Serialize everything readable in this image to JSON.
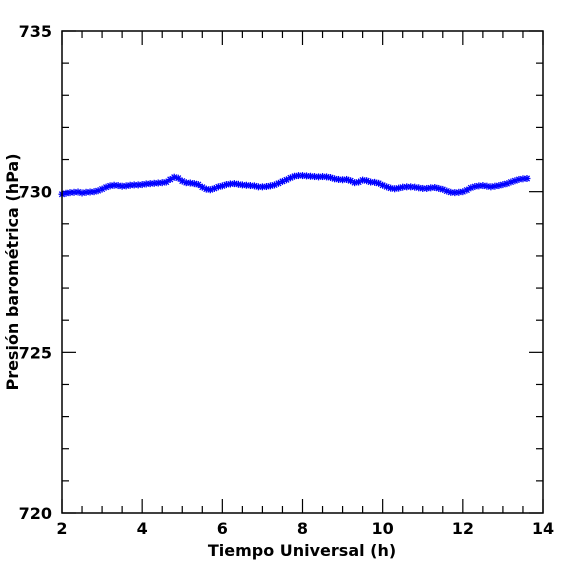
{
  "chart_data": {
    "type": "scatter",
    "xlabel": "Tiempo Universal (h)",
    "ylabel": "Presión barométrica (hPa)",
    "xlim": [
      2,
      14
    ],
    "ylim": [
      720,
      735
    ],
    "x_major_ticks": [
      2,
      4,
      6,
      8,
      10,
      12,
      14
    ],
    "y_major_ticks": [
      720,
      725,
      730,
      735
    ],
    "x_tick_labels": [
      "2",
      "4",
      "6",
      "8",
      "10",
      "12",
      "14"
    ],
    "y_tick_labels": [
      "720",
      "725",
      "730",
      "735"
    ],
    "marker": "asterisk",
    "marker_color": "#0000ff",
    "grid": false,
    "series": [
      {
        "x": [
          2.0,
          2.1,
          2.2,
          2.3,
          2.4,
          2.5,
          2.6,
          2.7,
          2.8,
          2.9,
          3.0,
          3.1,
          3.2,
          3.3,
          3.4,
          3.5,
          3.6,
          3.7,
          3.8,
          3.9,
          4.0,
          4.1,
          4.2,
          4.3,
          4.4,
          4.5,
          4.6,
          4.7,
          4.8,
          4.9,
          5.0,
          5.1,
          5.2,
          5.3,
          5.4,
          5.5,
          5.6,
          5.7,
          5.8,
          5.9,
          6.0,
          6.1,
          6.2,
          6.3,
          6.4,
          6.5,
          6.6,
          6.7,
          6.8,
          6.9,
          7.0,
          7.1,
          7.2,
          7.3,
          7.4,
          7.5,
          7.6,
          7.7,
          7.8,
          7.9,
          8.0,
          8.1,
          8.2,
          8.3,
          8.4,
          8.5,
          8.6,
          8.7,
          8.8,
          8.9,
          9.0,
          9.1,
          9.2,
          9.3,
          9.4,
          9.5,
          9.6,
          9.7,
          9.8,
          9.9,
          10.0,
          10.1,
          10.2,
          10.3,
          10.4,
          10.5,
          10.6,
          10.7,
          10.8,
          10.9,
          11.0,
          11.1,
          11.2,
          11.3,
          11.4,
          11.5,
          11.6,
          11.7,
          11.8,
          11.9,
          12.0,
          12.1,
          12.2,
          12.3,
          12.4,
          12.5,
          12.6,
          12.7,
          12.8,
          12.9,
          13.0,
          13.1,
          13.2,
          13.3,
          13.4,
          13.5,
          13.6
        ],
        "values": [
          729.92,
          729.95,
          729.97,
          729.98,
          729.99,
          729.96,
          729.98,
          729.99,
          730.0,
          730.03,
          730.08,
          730.14,
          730.18,
          730.2,
          730.19,
          730.17,
          730.18,
          730.2,
          730.21,
          730.21,
          730.22,
          730.24,
          730.25,
          730.26,
          730.27,
          730.28,
          730.3,
          730.38,
          730.45,
          730.42,
          730.33,
          730.28,
          730.27,
          730.25,
          730.22,
          730.14,
          730.08,
          730.06,
          730.1,
          730.15,
          730.18,
          730.22,
          730.24,
          730.25,
          730.23,
          730.21,
          730.2,
          730.19,
          730.18,
          730.15,
          730.15,
          730.16,
          730.18,
          730.21,
          730.26,
          730.32,
          730.37,
          730.43,
          730.48,
          730.5,
          730.5,
          730.49,
          730.48,
          730.47,
          730.46,
          730.47,
          730.46,
          730.44,
          730.4,
          730.38,
          730.37,
          730.38,
          730.34,
          730.28,
          730.3,
          730.36,
          730.34,
          730.3,
          730.29,
          730.26,
          730.2,
          730.15,
          730.11,
          730.09,
          730.11,
          730.14,
          730.15,
          730.15,
          730.14,
          730.12,
          730.1,
          730.1,
          730.12,
          730.13,
          730.1,
          730.07,
          730.02,
          729.98,
          729.97,
          729.98,
          730.0,
          730.05,
          730.12,
          730.16,
          730.18,
          730.19,
          730.17,
          730.15,
          730.17,
          730.19,
          730.22,
          730.25,
          730.3,
          730.34,
          730.38,
          730.4,
          730.41
        ]
      }
    ]
  }
}
